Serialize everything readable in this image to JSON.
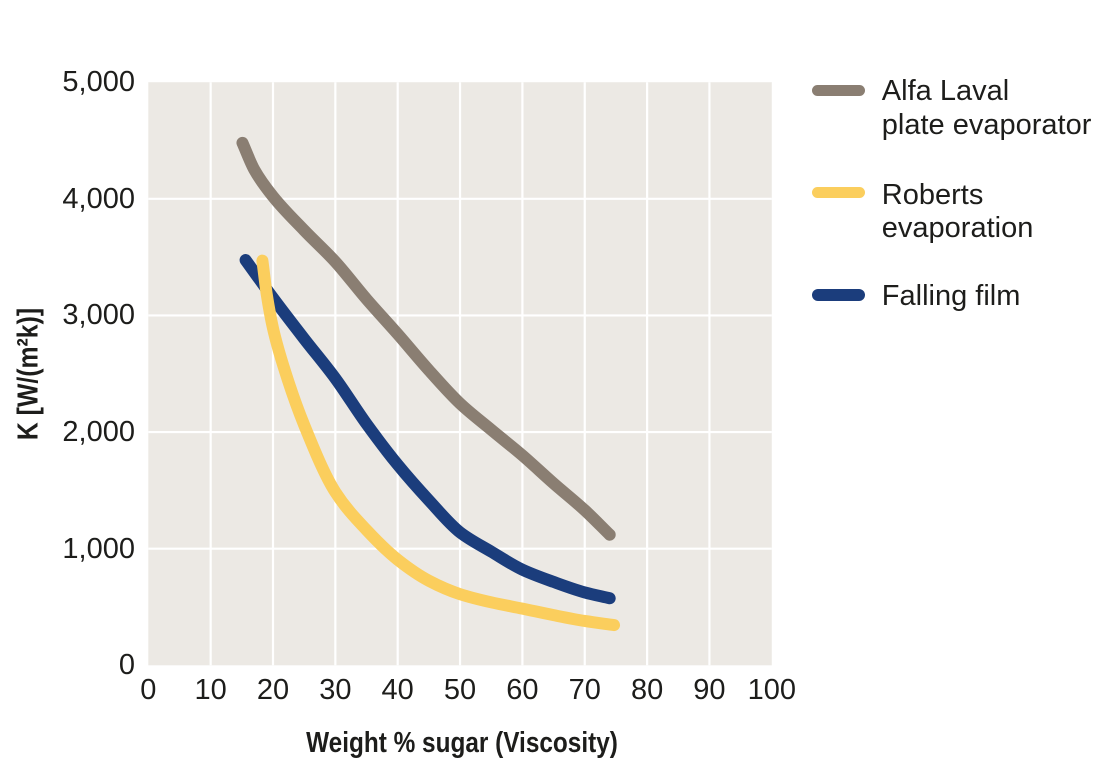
{
  "chart_data": {
    "type": "line",
    "title": "",
    "xlabel": "Weight % sugar (Viscosity)",
    "ylabel": "K [W/(m²k)]",
    "xlim": [
      0,
      100
    ],
    "ylim": [
      0,
      5000
    ],
    "grid": true,
    "legend_position": "right",
    "x_ticks": [
      0,
      10,
      20,
      30,
      40,
      50,
      60,
      70,
      80,
      90,
      100
    ],
    "x_tick_labels": [
      "0",
      "10",
      "20",
      "30",
      "40",
      "50",
      "60",
      "70",
      "80",
      "90",
      "100"
    ],
    "y_ticks": [
      0,
      1000,
      2000,
      3000,
      4000,
      5000
    ],
    "y_tick_labels": [
      "0",
      "1,000",
      "2,000",
      "3,000",
      "4,000",
      "5,000"
    ],
    "plot_background": "#ece9e4",
    "gridline_color": "#ffffff",
    "series": [
      {
        "name": "Alfa Laval plate evaporator",
        "legend_lines": [
          "Alfa Laval",
          "plate evaporator"
        ],
        "color": "#8a7e72",
        "draw_order": 1,
        "points": [
          [
            15.1,
            4480
          ],
          [
            17,
            4250
          ],
          [
            20,
            4020
          ],
          [
            25,
            3730
          ],
          [
            30,
            3460
          ],
          [
            35,
            3140
          ],
          [
            40,
            2840
          ],
          [
            45,
            2530
          ],
          [
            50,
            2245
          ],
          [
            55,
            2020
          ],
          [
            60,
            1800
          ],
          [
            65,
            1560
          ],
          [
            70,
            1330
          ],
          [
            74,
            1120
          ]
        ]
      },
      {
        "name": "Roberts evaporation",
        "legend_lines": [
          "Roberts",
          "evaporation"
        ],
        "color": "#fbce5d",
        "draw_order": 3,
        "points": [
          [
            18.3,
            3470
          ],
          [
            19,
            3180
          ],
          [
            20,
            2890
          ],
          [
            22,
            2510
          ],
          [
            25,
            2060
          ],
          [
            30,
            1485
          ],
          [
            35,
            1160
          ],
          [
            40,
            905
          ],
          [
            45,
            725
          ],
          [
            50,
            610
          ],
          [
            55,
            540
          ],
          [
            60,
            486
          ],
          [
            65,
            430
          ],
          [
            70,
            380
          ],
          [
            74.7,
            345
          ]
        ]
      },
      {
        "name": "Falling film",
        "legend_lines": [
          "Falling film"
        ],
        "color": "#1b3d7c",
        "draw_order": 2,
        "points": [
          [
            15.6,
            3475
          ],
          [
            20,
            3150
          ],
          [
            25,
            2800
          ],
          [
            30,
            2460
          ],
          [
            35,
            2070
          ],
          [
            40,
            1720
          ],
          [
            45,
            1415
          ],
          [
            50,
            1140
          ],
          [
            55,
            975
          ],
          [
            60,
            820
          ],
          [
            65,
            715
          ],
          [
            70,
            625
          ],
          [
            74,
            575
          ]
        ]
      }
    ]
  }
}
